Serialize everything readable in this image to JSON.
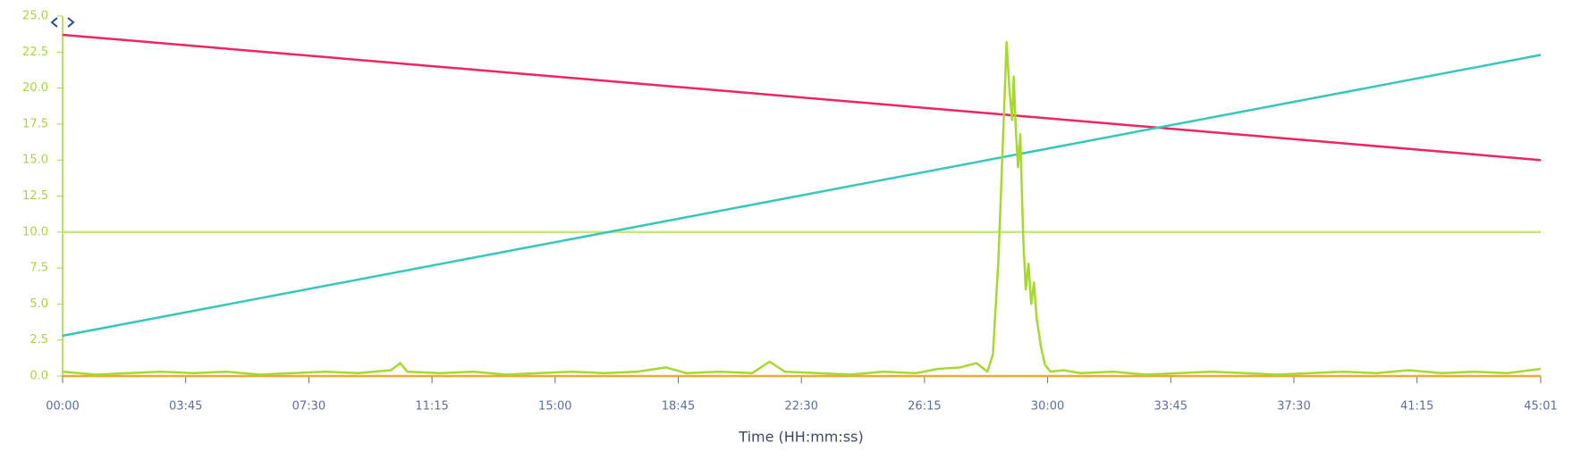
{
  "chart_data": {
    "type": "line",
    "x_label": "Time (HH:mm:ss)",
    "xlim": [
      0,
      2701
    ],
    "xticks": [
      {
        "value": 0,
        "label": "00:00"
      },
      {
        "value": 225,
        "label": "03:45"
      },
      {
        "value": 450,
        "label": "07:30"
      },
      {
        "value": 675,
        "label": "11:15"
      },
      {
        "value": 900,
        "label": "15:00"
      },
      {
        "value": 1125,
        "label": "18:45"
      },
      {
        "value": 1350,
        "label": "22:30"
      },
      {
        "value": 1575,
        "label": "26:15"
      },
      {
        "value": 1800,
        "label": "30:00"
      },
      {
        "value": 2025,
        "label": "33:45"
      },
      {
        "value": 2250,
        "label": "37:30"
      },
      {
        "value": 2475,
        "label": "41:15"
      },
      {
        "value": 2701,
        "label": "45:01"
      }
    ],
    "ylim": [
      0,
      25
    ],
    "yticks": [
      {
        "value": 0,
        "label": "0.0"
      },
      2.5,
      {
        "value": 5,
        "label": "5.0"
      },
      7.5,
      {
        "value": 10,
        "label": "10.0"
      },
      12.5,
      {
        "value": 15,
        "label": "15.0"
      },
      17.5,
      {
        "value": 20,
        "label": "20.0"
      },
      22.5,
      {
        "value": 25,
        "label": "25.0"
      }
    ],
    "series": [
      {
        "color": "#f0a830",
        "x": [
          0,
          2701
        ],
        "values": [
          0,
          0
        ]
      },
      {
        "color": "#c8ea78",
        "x": [
          0,
          2701
        ],
        "values": [
          10,
          10
        ]
      },
      {
        "color": "#f0245e",
        "x": [
          0,
          2701
        ],
        "values": [
          23.7,
          15.0
        ]
      },
      {
        "color": "#36c7b8",
        "x": [
          0,
          2701
        ],
        "values": [
          2.8,
          22.3
        ]
      },
      {
        "color": "#a6d930",
        "x": [
          0,
          30,
          60,
          120,
          180,
          240,
          300,
          360,
          420,
          480,
          540,
          600,
          617,
          630,
          690,
          750,
          810,
          870,
          930,
          990,
          1050,
          1102,
          1140,
          1200,
          1260,
          1292,
          1320,
          1380,
          1440,
          1500,
          1560,
          1600,
          1640,
          1670,
          1690,
          1700,
          1710,
          1720,
          1725,
          1730,
          1735,
          1738,
          1742,
          1746,
          1750,
          1755,
          1760,
          1765,
          1770,
          1775,
          1780,
          1788,
          1795,
          1805,
          1830,
          1860,
          1920,
          1980,
          2040,
          2100,
          2160,
          2220,
          2280,
          2340,
          2400,
          2460,
          2520,
          2580,
          2640,
          2701
        ],
        "values": [
          0.3,
          0.2,
          0.1,
          0.2,
          0.3,
          0.2,
          0.3,
          0.1,
          0.2,
          0.3,
          0.2,
          0.4,
          0.9,
          0.3,
          0.2,
          0.3,
          0.1,
          0.2,
          0.3,
          0.2,
          0.3,
          0.6,
          0.2,
          0.3,
          0.2,
          1.0,
          0.3,
          0.2,
          0.1,
          0.3,
          0.2,
          0.5,
          0.6,
          0.9,
          0.3,
          1.5,
          8.0,
          18.0,
          23.2,
          20.0,
          17.8,
          20.8,
          17.0,
          14.5,
          16.8,
          10.0,
          6.0,
          7.8,
          5.0,
          6.5,
          4.0,
          2.0,
          0.8,
          0.3,
          0.4,
          0.2,
          0.3,
          0.1,
          0.2,
          0.3,
          0.2,
          0.1,
          0.2,
          0.3,
          0.2,
          0.4,
          0.2,
          0.3,
          0.2,
          0.5
        ]
      }
    ]
  }
}
